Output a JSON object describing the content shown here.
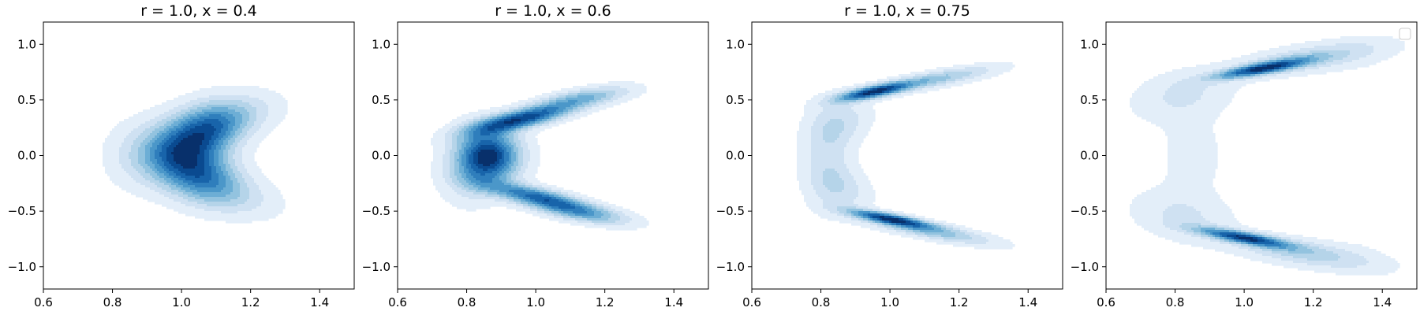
{
  "chart_data": [
    {
      "type": "contour",
      "title": "r = 1.0, x = 0.4",
      "xlim": [
        0.6,
        1.5
      ],
      "ylim": [
        -1.2,
        1.2
      ],
      "xticks": [
        0.6,
        0.8,
        1.0,
        1.2,
        1.4
      ],
      "xtick_labels": [
        "0.6",
        "0.8",
        "1.0",
        "1.2",
        "1.4"
      ],
      "yticks": [
        -1.0,
        -0.5,
        0.0,
        0.5,
        1.0
      ],
      "ytick_labels": [
        "−1.0",
        "−0.5",
        "0.0",
        "0.5",
        "1.0"
      ],
      "colormap": "Blues",
      "density_peaks": [
        {
          "x": 1.07,
          "y": 0.22,
          "relative_height": 1.0
        },
        {
          "x": 1.06,
          "y": -0.18,
          "relative_height": 0.9
        },
        {
          "x": 0.99,
          "y": 0.0,
          "relative_height": 0.85
        }
      ],
      "extent": {
        "x": [
          0.76,
          1.33
        ],
        "y": [
          -0.68,
          0.65
        ]
      },
      "legend": false
    },
    {
      "type": "contour",
      "title": "r = 1.0, x = 0.6",
      "xlim": [
        0.6,
        1.5
      ],
      "ylim": [
        -1.2,
        1.2
      ],
      "xticks": [
        0.6,
        0.8,
        1.0,
        1.2,
        1.4
      ],
      "xtick_labels": [
        "0.6",
        "0.8",
        "1.0",
        "1.2",
        "1.4"
      ],
      "yticks": [
        -1.0,
        -0.5,
        0.0,
        0.5,
        1.0
      ],
      "ytick_labels": [
        "−1.0",
        "−0.5",
        "0.0",
        "0.5",
        "1.0"
      ],
      "colormap": "Blues",
      "density_peaks": [
        {
          "x": 0.96,
          "y": 0.33,
          "relative_height": 1.0
        },
        {
          "x": 0.87,
          "y": -0.05,
          "relative_height": 0.95
        },
        {
          "x": 1.0,
          "y": -0.4,
          "relative_height": 0.9
        }
      ],
      "extent": {
        "x": [
          0.67,
          1.33
        ],
        "y": [
          -0.72,
          0.75
        ]
      },
      "legend": false
    },
    {
      "type": "contour",
      "title": "r = 1.0, x = 0.75",
      "xlim": [
        0.6,
        1.5
      ],
      "ylim": [
        -1.2,
        1.2
      ],
      "xticks": [
        0.6,
        0.8,
        1.0,
        1.2,
        1.4
      ],
      "xtick_labels": [
        "0.6",
        "0.8",
        "1.0",
        "1.2",
        "1.4"
      ],
      "yticks": [
        -1.0,
        -0.5,
        0.0,
        0.5,
        1.0
      ],
      "ytick_labels": [
        "−1.0",
        "−0.5",
        "0.0",
        "0.5",
        "1.0"
      ],
      "colormap": "Blues",
      "density_peaks": [
        {
          "x": 0.95,
          "y": 0.57,
          "relative_height": 1.0
        },
        {
          "x": 1.0,
          "y": -0.57,
          "relative_height": 1.0
        }
      ],
      "extent": {
        "x": [
          0.62,
          1.33
        ],
        "y": [
          -0.95,
          0.9
        ]
      },
      "legend": false
    },
    {
      "type": "contour",
      "title": "",
      "xlim": [
        0.6,
        1.5
      ],
      "ylim": [
        -1.2,
        1.2
      ],
      "xticks": [
        0.6,
        0.8,
        1.0,
        1.2,
        1.4
      ],
      "xtick_labels": [
        "0.6",
        "0.8",
        "1.0",
        "1.2",
        "1.4"
      ],
      "yticks": [
        -1.0,
        -0.5,
        0.0,
        0.5,
        1.0
      ],
      "ytick_labels": [
        "−1.0",
        "−0.5",
        "0.0",
        "0.5",
        "1.0"
      ],
      "colormap": "Blues",
      "density_peaks": [
        {
          "x": 1.05,
          "y": 0.78,
          "relative_height": 1.0
        },
        {
          "x": 1.0,
          "y": -0.74,
          "relative_height": 1.0
        }
      ],
      "extent": {
        "x": [
          0.62,
          1.45
        ],
        "y": [
          -1.1,
          1.05
        ]
      },
      "legend": true,
      "legend_position": "top-right"
    }
  ]
}
